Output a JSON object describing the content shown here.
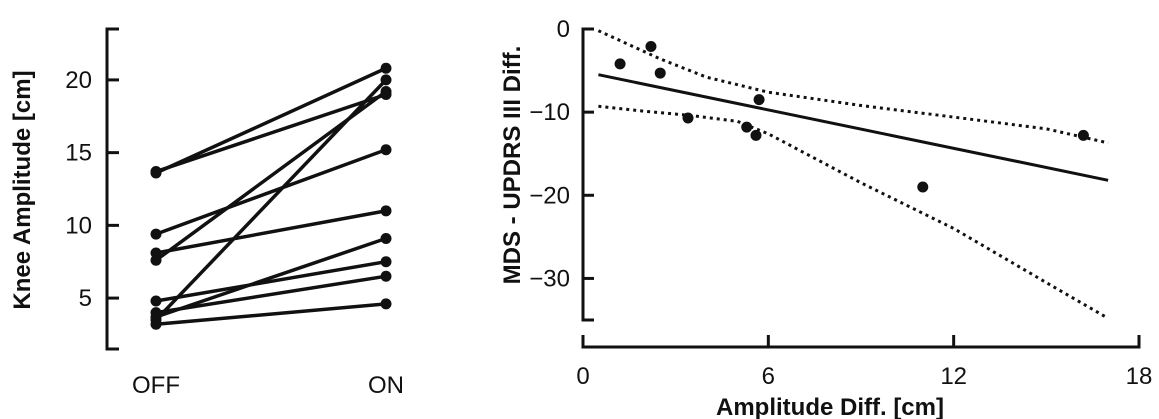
{
  "chart_data": [
    {
      "type": "line",
      "ylabel": "Knee Amplitude [cm]",
      "categories": [
        "OFF",
        "ON"
      ],
      "yticks": [
        5,
        10,
        15,
        20
      ],
      "ylim": [
        1.5,
        23.5
      ],
      "series": [
        {
          "values": [
            13.7,
            19.0
          ]
        },
        {
          "values": [
            13.6,
            20.8
          ]
        },
        {
          "values": [
            9.4,
            15.2
          ]
        },
        {
          "values": [
            8.1,
            11.0
          ]
        },
        {
          "values": [
            7.6,
            19.2
          ]
        },
        {
          "values": [
            4.8,
            7.5
          ]
        },
        {
          "values": [
            4.0,
            6.5
          ]
        },
        {
          "values": [
            3.7,
            9.1
          ]
        },
        {
          "values": [
            3.5,
            20.0
          ]
        },
        {
          "values": [
            3.2,
            4.6
          ]
        }
      ]
    },
    {
      "type": "scatter",
      "xlabel": "Amplitude Diff. [cm]",
      "ylabel": "MDS - UPDRS III Diff.",
      "xticks": [
        0,
        6,
        12,
        18
      ],
      "yticks": [
        0,
        -10,
        -20,
        -30
      ],
      "xlim": [
        0,
        18
      ],
      "ylim": [
        -35,
        0
      ],
      "points": [
        {
          "x": 1.2,
          "y": -4.2
        },
        {
          "x": 2.2,
          "y": -2.1
        },
        {
          "x": 2.5,
          "y": -5.3
        },
        {
          "x": 3.4,
          "y": -10.7
        },
        {
          "x": 5.3,
          "y": -11.8
        },
        {
          "x": 5.6,
          "y": -12.8
        },
        {
          "x": 5.7,
          "y": -8.5
        },
        {
          "x": 11.0,
          "y": -19.0
        },
        {
          "x": 16.2,
          "y": -12.8
        }
      ],
      "fit_line": [
        [
          0.5,
          -5.5
        ],
        [
          17.0,
          -18.2
        ]
      ],
      "ci_upper": [
        [
          0.5,
          -0.2
        ],
        [
          2.5,
          -3.6
        ],
        [
          4.0,
          -5.8
        ],
        [
          6.0,
          -7.6
        ],
        [
          9.0,
          -9.2
        ],
        [
          12.0,
          -10.6
        ],
        [
          15.0,
          -12.0
        ],
        [
          17.0,
          -13.7
        ]
      ],
      "ci_lower": [
        [
          0.5,
          -9.3
        ],
        [
          2.0,
          -9.9
        ],
        [
          3.5,
          -10.4
        ],
        [
          5.0,
          -11.1
        ],
        [
          6.0,
          -12.6
        ],
        [
          9.0,
          -18.5
        ],
        [
          12.0,
          -24.0
        ],
        [
          15.0,
          -30.5
        ],
        [
          17.0,
          -34.8
        ]
      ]
    }
  ]
}
